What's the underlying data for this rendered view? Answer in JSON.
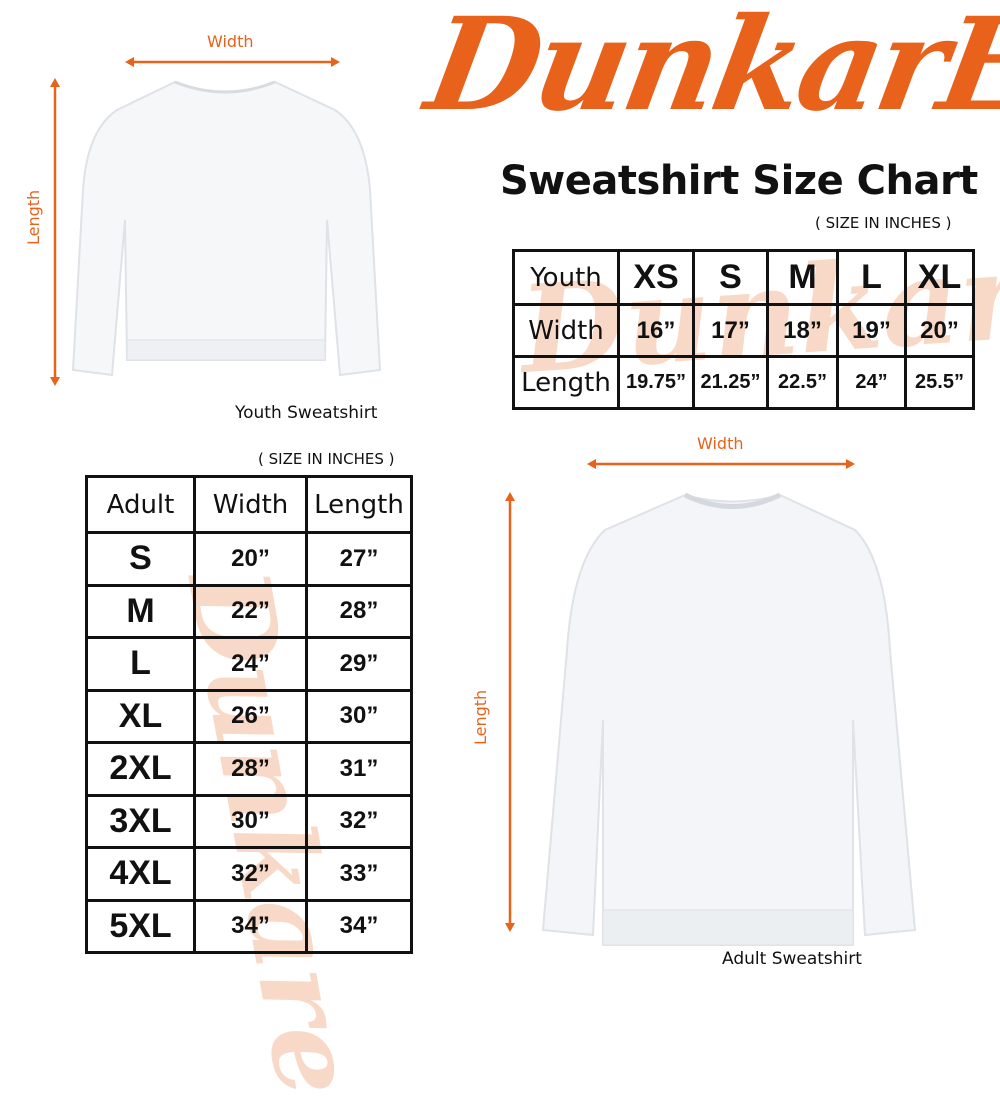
{
  "brand": {
    "logo_text": "DunkarE",
    "title": "Sweatshirt Size Chart",
    "accent_color": "#e8621c"
  },
  "youth": {
    "caption": "Youth Sweatshirt",
    "width_label": "Width",
    "length_label": "Length",
    "note": "( SIZE IN INCHES )",
    "table": {
      "header": [
        "Youth",
        "XS",
        "S",
        "M",
        "L",
        "XL"
      ],
      "rows": [
        [
          "Width",
          "16”",
          "17”",
          "18”",
          "19”",
          "20”"
        ],
        [
          "Length",
          "19.75”",
          "21.25”",
          "22.5”",
          "24”",
          "25.5”"
        ]
      ]
    }
  },
  "adult": {
    "caption": "Adult Sweatshirt",
    "width_label": "Width",
    "length_label": "Length",
    "note": "( SIZE IN INCHES )",
    "table": {
      "header": [
        "Adult",
        "Width",
        "Length"
      ],
      "rows": [
        [
          "S",
          "20”",
          "27”"
        ],
        [
          "M",
          "22”",
          "28”"
        ],
        [
          "L",
          "24”",
          "29”"
        ],
        [
          "XL",
          "26”",
          "30”"
        ],
        [
          "2XL",
          "28”",
          "31”"
        ],
        [
          "3XL",
          "30”",
          "32”"
        ],
        [
          "4XL",
          "32”",
          "33”"
        ],
        [
          "5XL",
          "34”",
          "34”"
        ]
      ]
    }
  }
}
